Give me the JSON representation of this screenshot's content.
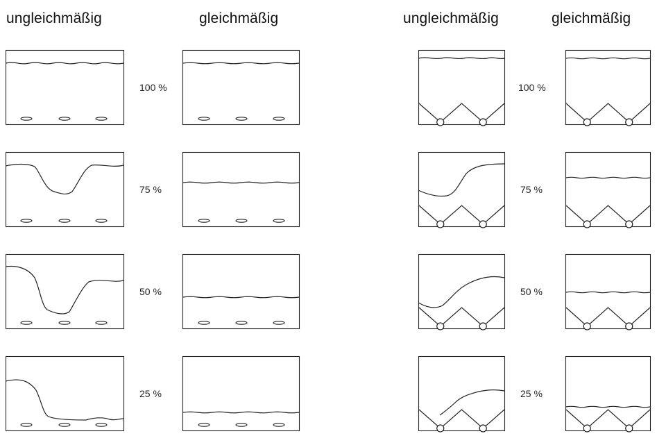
{
  "headers": {
    "left_uneven": "ungleichmäßig",
    "left_even": "gleichmäßig",
    "right_uneven": "ungleichmäßig",
    "right_even": "gleichmäßig"
  },
  "rows": [
    {
      "label_left": "100 %",
      "label_right": "100 %"
    },
    {
      "label_left": "75 %",
      "label_right": "75 %"
    },
    {
      "label_left": "50 %",
      "label_right": "50 %"
    },
    {
      "label_left": "25 %",
      "label_right": "25 %"
    }
  ],
  "colors": {
    "stroke": "#222222",
    "background": "#ffffff"
  },
  "icons": {
    "flat_floor_diffuser": "ellipse-nozzle-icon",
    "hopper_floor_outlet": "circle-outlet-icon"
  }
}
